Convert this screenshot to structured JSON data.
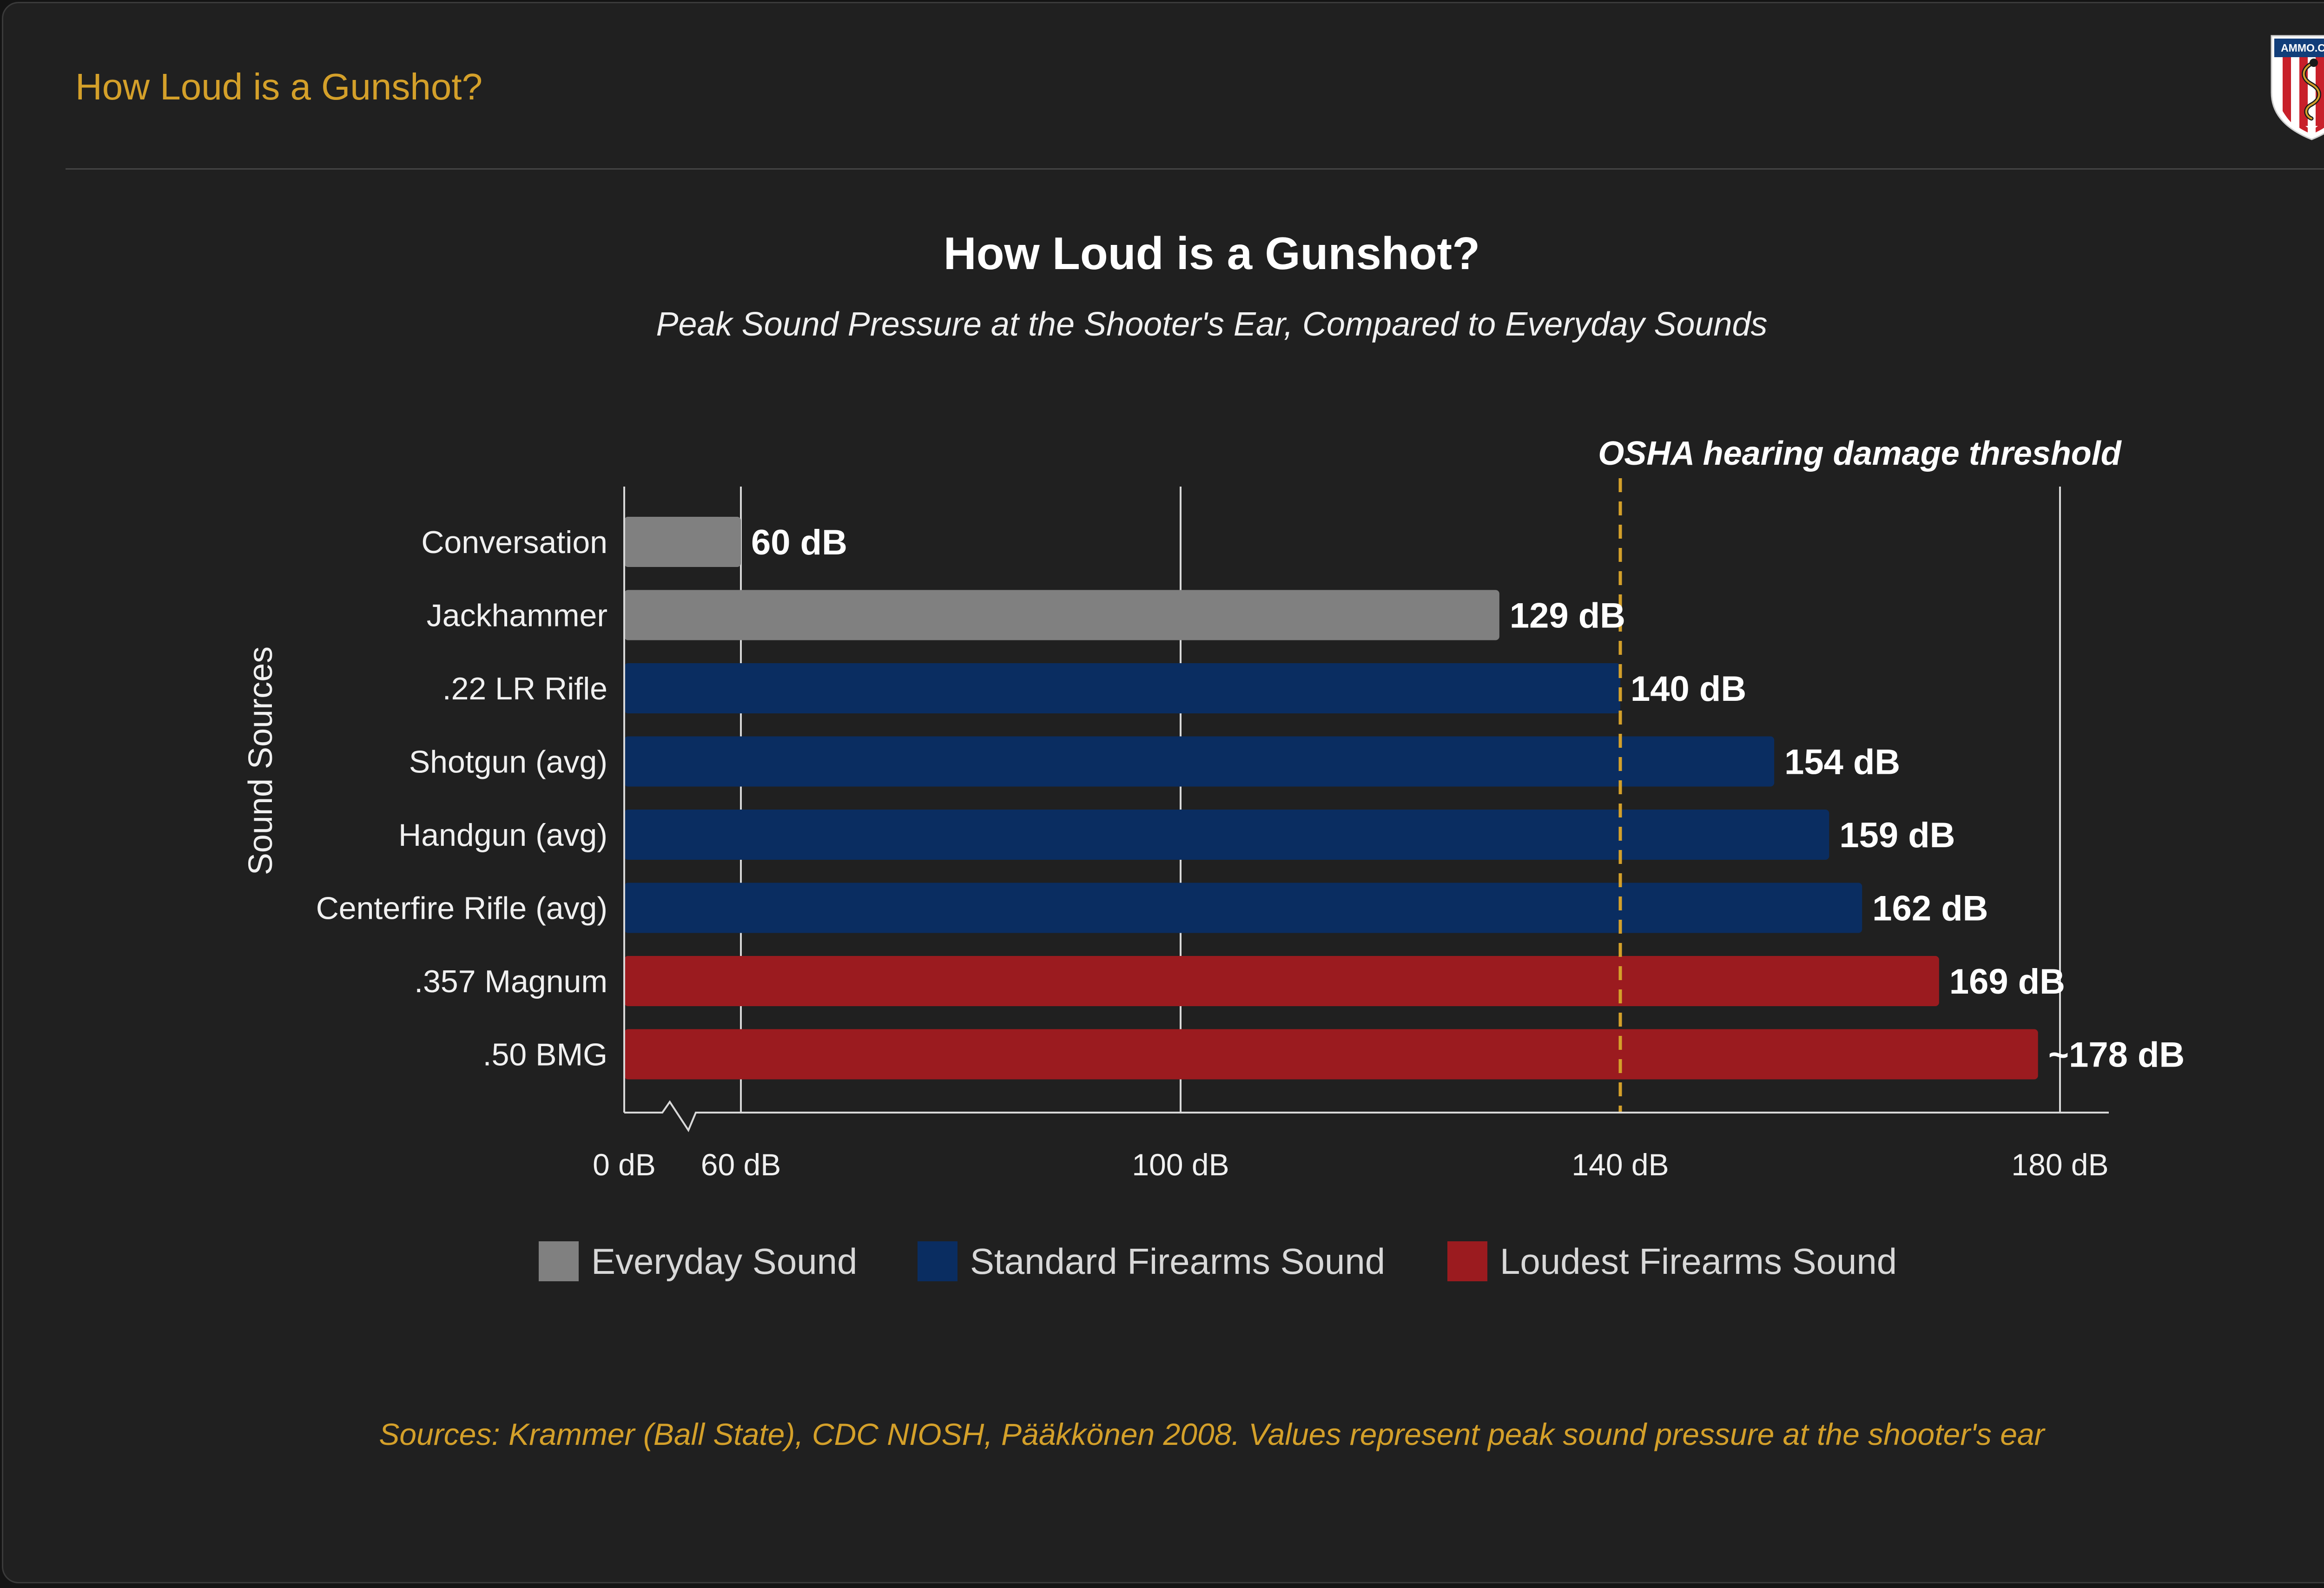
{
  "header": {
    "title": "How Loud is a Gunshot?",
    "logo_text": "AMMO.COM"
  },
  "colors": {
    "everyday": "#808080",
    "standard": "#0a2d61",
    "loudest": "#9b1b1f",
    "threshold": "#d4a02a",
    "accent": "#d4a02a"
  },
  "chart_data": {
    "type": "bar",
    "orientation": "horizontal",
    "title": "How Loud is a Gunshot?",
    "subtitle": "Peak Sound Pressure at the Shooter's Ear, Compared to Everyday Sounds",
    "ylabel": "Sound Sources",
    "xlabel": "",
    "x_axis": "broken axis: 0 dB, then 60 to 180 dB",
    "xlim": [
      0,
      180
    ],
    "x_ticks": [
      0,
      60,
      100,
      140,
      180
    ],
    "x_tick_labels": [
      "0 dB",
      "60 dB",
      "100 dB",
      "140 dB",
      "180 dB"
    ],
    "grid": true,
    "categories": [
      "Conversation",
      "Jackhammer",
      ".22 LR Rifle",
      "Shotgun (avg)",
      "Handgun (avg)",
      "Centerfire Rifle (avg)",
      ".357 Magnum",
      ".50 BMG"
    ],
    "values": [
      60,
      129,
      140,
      154,
      159,
      162,
      169,
      178
    ],
    "value_labels": [
      "60 dB",
      "129 dB",
      "140 dB",
      "154 dB",
      "159 dB",
      "162 dB",
      "169 dB",
      "~178 dB"
    ],
    "groups": [
      "everyday",
      "everyday",
      "standard",
      "standard",
      "standard",
      "standard",
      "loudest",
      "loudest"
    ],
    "legend": {
      "placement": "bottom",
      "items": [
        {
          "key": "everyday",
          "label": "Everyday Sound"
        },
        {
          "key": "standard",
          "label": "Standard Firearms Sound"
        },
        {
          "key": "loudest",
          "label": "Loudest Firearms Sound"
        }
      ]
    },
    "threshold": {
      "value": 140,
      "label": "OSHA hearing damage threshold"
    },
    "source_note": "Sources: Krammer (Ball State), CDC NIOSH, Pääkkönen 2008. Values represent peak sound pressure at the shooter's ear"
  }
}
